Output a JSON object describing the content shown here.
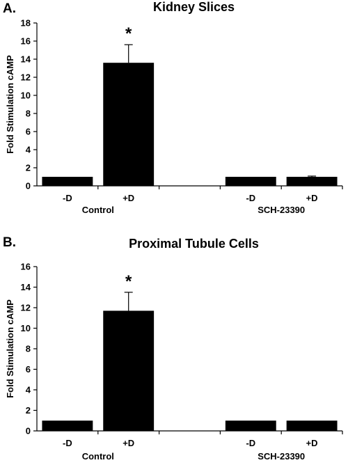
{
  "chart_data": [
    {
      "type": "bar",
      "panel_label": "A.",
      "title": "Kidney Slices",
      "ylabel": "Fold Stimulation cAMP",
      "xlabel": "",
      "ylim": [
        0,
        18
      ],
      "ytick_step": 2,
      "yticks": [
        "0",
        "2",
        "4",
        "6",
        "8",
        "10",
        "12",
        "14",
        "16",
        "18"
      ],
      "categories": [
        "-D",
        "+D",
        "",
        "-D",
        "+D"
      ],
      "values": [
        1,
        13.6,
        null,
        1,
        1
      ],
      "error_plus": [
        0,
        2.0,
        null,
        0,
        0.08
      ],
      "annotations": [
        "",
        "*",
        "",
        "",
        ""
      ],
      "group_labels": [
        {
          "label": "Control",
          "categories": [
            0,
            1
          ]
        },
        {
          "label": "SCH-23390",
          "categories": [
            3,
            4
          ]
        }
      ],
      "grid": false,
      "legend": "none"
    },
    {
      "type": "bar",
      "panel_label": "B.",
      "title": "Proximal Tubule Cells",
      "ylabel": "Fold Stimulation cAMP",
      "xlabel": "",
      "ylim": [
        0,
        16
      ],
      "ytick_step": 2,
      "yticks": [
        "0",
        "2",
        "4",
        "6",
        "8",
        "10",
        "12",
        "14",
        "16"
      ],
      "categories": [
        "-D",
        "+D",
        "",
        "-D",
        "+D"
      ],
      "values": [
        1,
        11.7,
        null,
        1,
        1
      ],
      "error_plus": [
        0,
        1.8,
        null,
        0,
        0
      ],
      "annotations": [
        "",
        "*",
        "",
        "",
        ""
      ],
      "group_labels": [
        {
          "label": "Control",
          "categories": [
            0,
            1
          ]
        },
        {
          "label": "SCH-23390",
          "categories": [
            3,
            4
          ]
        }
      ],
      "grid": false,
      "legend": "none"
    }
  ]
}
